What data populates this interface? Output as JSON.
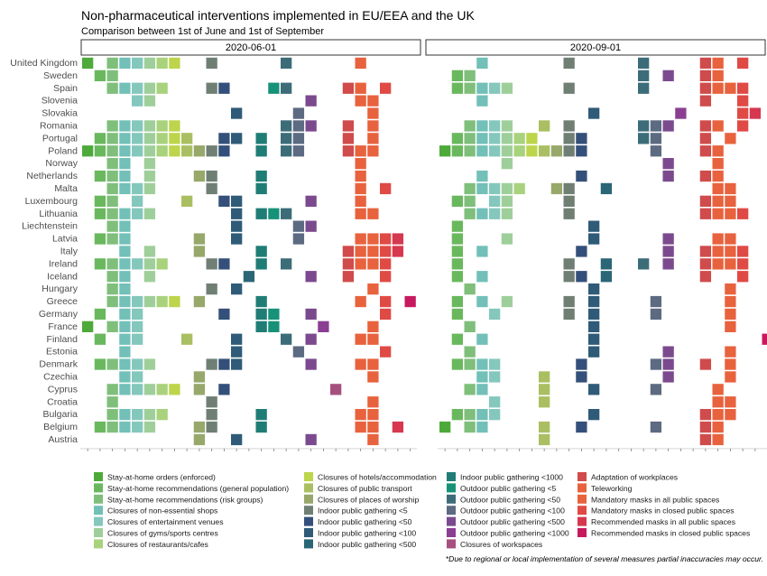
{
  "title": "Non-pharmaceutical interventions implemented in EU/EEA and the UK",
  "subtitle": "Comparison between 1st of June and 1st of September",
  "footnote": "*Due to regional or local implementation of several measures partial inaccuracies may occur.",
  "chart_data": {
    "type": "heatmap",
    "panels": [
      "2020-06-01",
      "2020-09-01"
    ],
    "countries": [
      "United Kingdom",
      "Sweden",
      "Spain",
      "Slovenia",
      "Slovakia",
      "Romania",
      "Portugal",
      "Poland",
      "Norway",
      "Netherlands",
      "Malta",
      "Luxembourg",
      "Lithuania",
      "Liechtenstein",
      "Latvia",
      "Italy",
      "Ireland",
      "Iceland",
      "Hungary",
      "Greece",
      "Germany",
      "France",
      "Finland",
      "Estonia",
      "Denmark",
      "Czechia",
      "Cyprus",
      "Croatia",
      "Bulgaria",
      "Belgium",
      "Austria"
    ],
    "measures": [
      {
        "name": "Stay-at-home orders (enforced)",
        "color": "#4daa3a"
      },
      {
        "name": "Stay-at-home recommendations (general population)",
        "color": "#6ab85e"
      },
      {
        "name": "Stay-at-home recommendations (risk groups)",
        "color": "#7fbf7b"
      },
      {
        "name": "Closures of non-essential shops",
        "color": "#72c0b8"
      },
      {
        "name": "Closures of entertainment venues",
        "color": "#84c7bd"
      },
      {
        "name": "Closures of gyms/sports centres",
        "color": "#9ecf9a"
      },
      {
        "name": "Closures of restaurants/cafes",
        "color": "#a9d27c"
      },
      {
        "name": "Closures of hotels/accommodation",
        "color": "#bcd54b"
      },
      {
        "name": "Closures of public transport",
        "color": "#aabf62"
      },
      {
        "name": "Closures of places of worship",
        "color": "#97a86a"
      },
      {
        "name": "Indoor public gathering <5",
        "color": "#6f7f74"
      },
      {
        "name": "Indoor public gathering <50",
        "color": "#34507a"
      },
      {
        "name": "Indoor public gathering <100",
        "color": "#2f5b78"
      },
      {
        "name": "Indoor public gathering <500",
        "color": "#2a6676"
      },
      {
        "name": "Indoor public gathering <1000",
        "color": "#1f7d76"
      },
      {
        "name": "Outdoor public gathering <5",
        "color": "#179278"
      },
      {
        "name": "Outdoor public gathering <50",
        "color": "#3d6c79"
      },
      {
        "name": "Outdoor public gathering <100",
        "color": "#5c6a82"
      },
      {
        "name": "Outdoor public gathering <500",
        "color": "#7b4a8e"
      },
      {
        "name": "Outdoor public gathering <1000",
        "color": "#8b3f92"
      },
      {
        "name": "Closures of workspaces",
        "color": "#a6507f"
      },
      {
        "name": "Adaptation of workplaces",
        "color": "#d04b4b"
      },
      {
        "name": "Teleworking",
        "color": "#e8623e"
      },
      {
        "name": "Mandatory masks in all public spaces",
        "color": "#e8623e"
      },
      {
        "name": "Mandatory masks in closed public spaces",
        "color": "#e04a45"
      },
      {
        "name": "Recommended masks in all public spaces",
        "color": "#d6384f"
      },
      {
        "name": "Recommended masks in closed public spaces",
        "color": "#c71a5e"
      }
    ],
    "active": {
      "2020-06-01": {
        "United Kingdom": [
          0,
          2,
          3,
          4,
          5,
          6,
          7,
          10,
          16,
          22
        ],
        "Sweden": [
          1,
          2
        ],
        "Spain": [
          2,
          3,
          4,
          5,
          6,
          10,
          11,
          15,
          16,
          21,
          22,
          24
        ],
        "Slovenia": [
          4,
          5,
          18,
          22,
          23
        ],
        "Slovakia": [
          12,
          17,
          23
        ],
        "Romania": [
          2,
          3,
          4,
          5,
          6,
          7,
          16,
          17,
          18,
          21,
          23
        ],
        "Portugal": [
          1,
          2,
          3,
          4,
          5,
          6,
          7,
          8,
          11,
          12,
          14,
          16,
          17,
          21,
          23
        ],
        "Poland": [
          0,
          1,
          2,
          3,
          4,
          5,
          6,
          7,
          8,
          9,
          10,
          11,
          14,
          16,
          17,
          21,
          22,
          23
        ],
        "Norway": [
          2,
          3,
          5,
          22
        ],
        "Netherlands": [
          1,
          2,
          3,
          5,
          9,
          10,
          14,
          22
        ],
        "Malta": [
          2,
          3,
          4,
          5,
          10,
          14,
          22,
          24
        ],
        "Luxembourg": [
          1,
          2,
          4,
          8,
          11,
          12,
          18,
          22
        ],
        "Lithuania": [
          1,
          2,
          3,
          4,
          5,
          12,
          14,
          15,
          16,
          22,
          23
        ],
        "Liechtenstein": [
          2,
          3,
          12,
          17,
          18
        ],
        "Latvia": [
          1,
          2,
          3,
          9,
          12,
          17,
          22,
          23,
          24,
          25
        ],
        "Italy": [
          3,
          5,
          9,
          14,
          21,
          22,
          23,
          24,
          25
        ],
        "Ireland": [
          1,
          2,
          3,
          4,
          5,
          6,
          10,
          11,
          14,
          16,
          21,
          22,
          23,
          24
        ],
        "Iceland": [
          2,
          3,
          5,
          13,
          18,
          21,
          24
        ],
        "Hungary": [
          2,
          3,
          10,
          12,
          23
        ],
        "Greece": [
          2,
          3,
          4,
          5,
          6,
          7,
          9,
          14,
          22,
          24,
          26
        ],
        "Germany": [
          1,
          3,
          4,
          11,
          14,
          15,
          18,
          24
        ],
        "France": [
          0,
          2,
          3,
          4,
          14,
          15,
          19,
          23
        ],
        "Finland": [
          1,
          3,
          4,
          8,
          12,
          16,
          18,
          22,
          23
        ],
        "Estonia": [
          3,
          12,
          17,
          24
        ],
        "Denmark": [
          1,
          2,
          3,
          4,
          5,
          10,
          11,
          12,
          18,
          22,
          23
        ],
        "Czechia": [
          3,
          4,
          9,
          23
        ],
        "Cyprus": [
          2,
          3,
          4,
          5,
          6,
          7,
          9,
          11,
          20
        ],
        "Croatia": [
          2,
          10,
          23
        ],
        "Bulgaria": [
          2,
          3,
          4,
          5,
          6,
          10,
          14,
          22,
          23
        ],
        "Belgium": [
          1,
          2,
          3,
          4,
          5,
          9,
          10,
          14,
          22,
          23,
          25
        ],
        "Austria": [
          9,
          12,
          18,
          23
        ]
      },
      "2020-09-01": {
        "United Kingdom": [
          3,
          10,
          16,
          21,
          22,
          24
        ],
        "Sweden": [
          1,
          2,
          16,
          18,
          21,
          22
        ],
        "Spain": [
          1,
          2,
          3,
          4,
          5,
          10,
          16,
          21,
          22,
          23,
          24
        ],
        "Slovenia": [
          3,
          21,
          24
        ],
        "Slovakia": [
          12,
          19,
          24,
          25
        ],
        "Romania": [
          2,
          3,
          4,
          5,
          8,
          10,
          16,
          17,
          18,
          21,
          22,
          24
        ],
        "Portugal": [
          1,
          2,
          3,
          4,
          5,
          6,
          7,
          10,
          11,
          16,
          17,
          21,
          23
        ],
        "Poland": [
          0,
          1,
          2,
          3,
          4,
          5,
          6,
          7,
          8,
          9,
          10,
          11,
          17,
          21,
          22
        ],
        "Norway": [
          5,
          18,
          22
        ],
        "Netherlands": [
          3,
          11,
          18,
          21,
          22
        ],
        "Malta": [
          2,
          3,
          4,
          5,
          6,
          9,
          10,
          13,
          22,
          23
        ],
        "Luxembourg": [
          1,
          2,
          4,
          5,
          10,
          21,
          22,
          23
        ],
        "Lithuania": [
          2,
          3,
          4,
          5,
          10,
          21,
          22,
          23,
          24
        ],
        "Liechtenstein": [
          1,
          12
        ],
        "Latvia": [
          1,
          5,
          12,
          18,
          22,
          23
        ],
        "Italy": [
          1,
          3,
          11,
          18,
          21,
          22,
          23,
          24
        ],
        "Ireland": [
          1,
          10,
          13,
          16,
          18,
          21,
          22,
          23,
          24
        ],
        "Iceland": [
          1,
          3,
          10,
          11,
          13,
          21,
          24
        ],
        "Hungary": [
          2,
          12,
          23
        ],
        "Greece": [
          1,
          3,
          5,
          10,
          12,
          17,
          23
        ],
        "Germany": [
          1,
          4,
          10,
          12,
          17,
          23
        ],
        "France": [
          2,
          12,
          23
        ],
        "Finland": [
          1,
          3,
          12,
          26
        ],
        "Estonia": [
          2,
          12,
          18,
          23
        ],
        "Denmark": [
          1,
          2,
          3,
          4,
          11,
          17,
          18,
          21,
          23
        ],
        "Czechia": [
          3,
          4,
          8,
          11,
          18,
          23
        ],
        "Cyprus": [
          2,
          3,
          8,
          12,
          17,
          22
        ],
        "Croatia": [
          4,
          8,
          22,
          23
        ],
        "Bulgaria": [
          1,
          2,
          3,
          4,
          12,
          21,
          22,
          23
        ],
        "Belgium": [
          0,
          2,
          3,
          8,
          11,
          17,
          21,
          22
        ],
        "Austria": [
          8,
          21,
          22
        ]
      }
    },
    "legend_columns": [
      [
        0,
        1,
        2,
        3,
        4,
        5,
        6
      ],
      [
        7,
        8,
        9,
        10,
        11,
        12,
        13
      ],
      [
        14,
        15,
        16,
        17,
        18,
        19,
        20
      ],
      [
        21,
        22,
        23,
        24,
        25,
        26
      ]
    ]
  }
}
